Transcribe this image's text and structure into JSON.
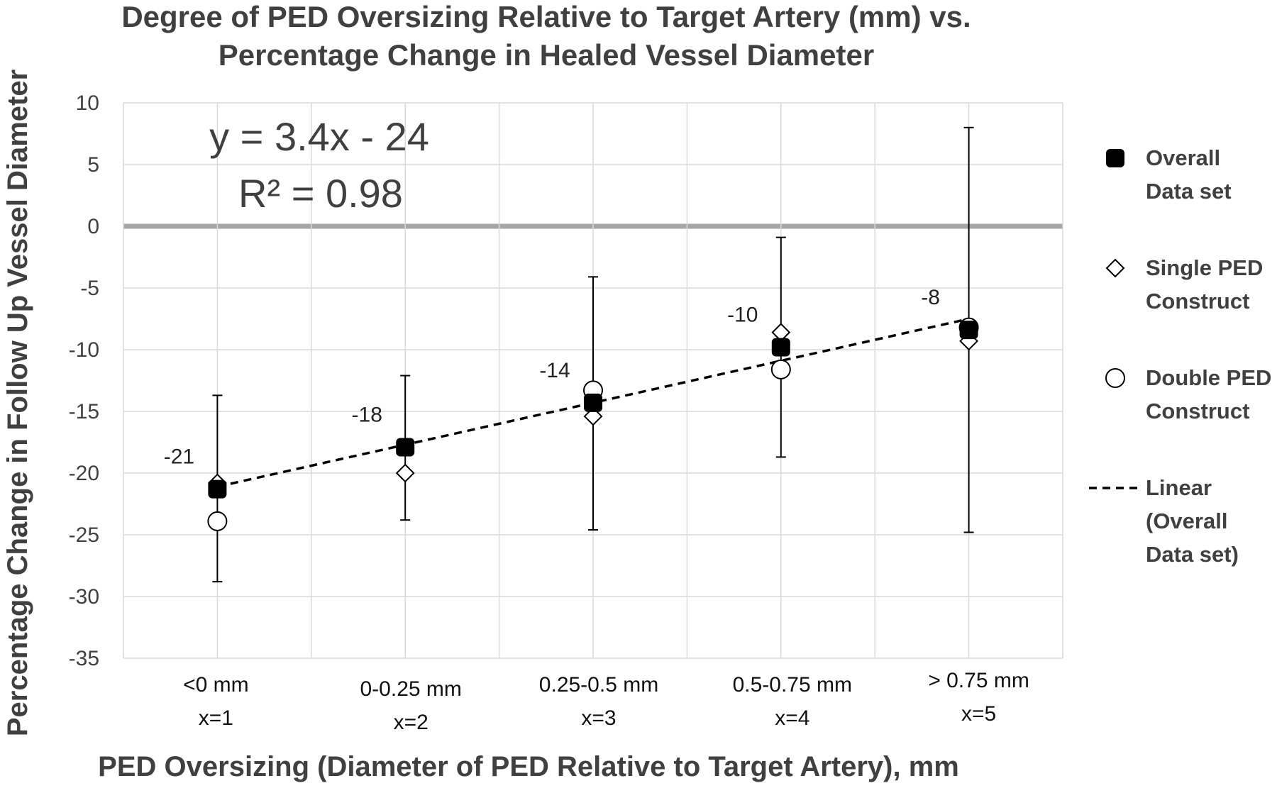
{
  "chart_data": {
    "type": "scatter",
    "title_lines": [
      "Degree of PED Oversizing Relative to Target Artery (mm) vs.",
      "Percentage Change in Healed Vessel Diameter"
    ],
    "xlabel": "PED Oversizing (Diameter of PED Relative to Target Artery), mm",
    "ylabel": "Percentage Change in Follow Up Vessel Diameter",
    "ylim": [
      -35,
      10
    ],
    "yticks": [
      10,
      5,
      0,
      -5,
      -10,
      -15,
      -20,
      -25,
      -30,
      -35
    ],
    "categories": [
      {
        "line1": "<0 mm",
        "line2": "x=1"
      },
      {
        "line1": "0-0.25 mm",
        "line2": "x=2"
      },
      {
        "line1": "0.25-0.5 mm",
        "line2": "x=3"
      },
      {
        "line1": "0.5-0.75 mm",
        "line2": "x=4"
      },
      {
        "line1": "> 0.75 mm",
        "line2": "x=5"
      }
    ],
    "x": [
      1,
      2,
      3,
      4,
      5
    ],
    "grid": true,
    "series": [
      {
        "name_lines": [
          "Overall",
          "Data set"
        ],
        "marker": "filled-square",
        "values": [
          -21.3,
          -17.9,
          -14.3,
          -9.8,
          -8.4
        ],
        "error_bars": [
          [
            -28.8,
            -13.7
          ],
          [
            -23.8,
            -12.1
          ],
          [
            -24.6,
            -4.1
          ],
          [
            -18.7,
            -0.9
          ],
          [
            -24.8,
            8.0
          ]
        ],
        "data_labels": [
          "-21",
          "-18",
          "-14",
          "-10",
          "-8"
        ]
      },
      {
        "name_lines": [
          "Single PED",
          "Construct"
        ],
        "marker": "diamond",
        "values": [
          -20.8,
          -20.0,
          -15.4,
          -8.6,
          -9.3
        ]
      },
      {
        "name_lines": [
          "Double PED",
          "Construct"
        ],
        "marker": "circle",
        "values": [
          -23.9,
          null,
          -13.3,
          -11.6,
          -8.2
        ]
      }
    ],
    "trendline": {
      "name_lines": [
        "Linear",
        "(Overall",
        "Data set)"
      ],
      "style": "dashed",
      "slope": 3.4,
      "intercept": -24.5,
      "equation": "y = 3.4x - 24",
      "r2": "R² = 0.98"
    },
    "legend_position": "right",
    "colors": {
      "grid": "#d9d9d9",
      "zero_line": "#a6a6a6",
      "text": "#404040",
      "marker": "#000000"
    }
  }
}
